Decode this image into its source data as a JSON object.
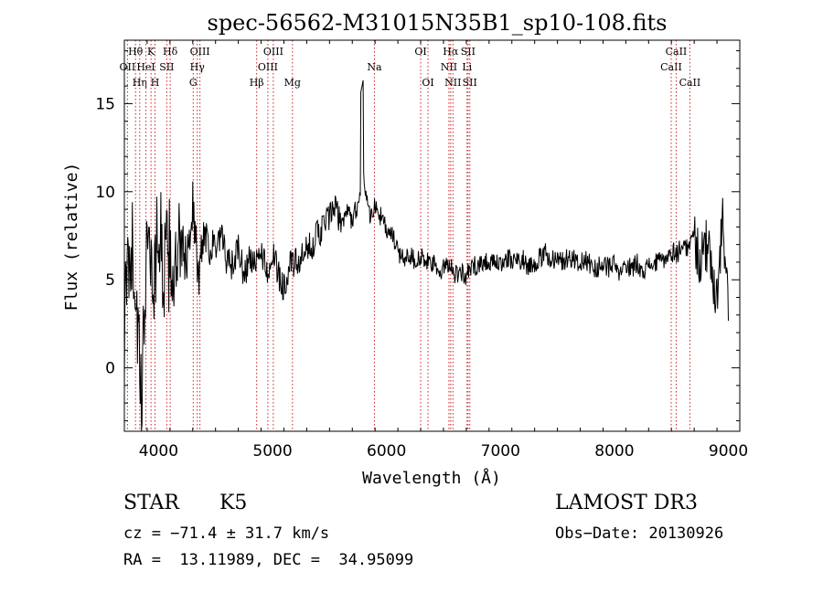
{
  "chart_data": {
    "type": "line",
    "title": "spec-56562-M31015N35B1_sp10-108.fits",
    "xlabel": "Wavelength (Å)",
    "ylabel": "Flux (relative)",
    "xlim": [
      3700,
      9100
    ],
    "ylim": [
      -3.6,
      18.6
    ],
    "x_ticks": [
      4000,
      5000,
      6000,
      7000,
      8000,
      9000
    ],
    "x_tick_labels": [
      "4000",
      "5000",
      "6000",
      "7000",
      "8000",
      "9000"
    ],
    "y_ticks": [
      0,
      5,
      10,
      15
    ],
    "y_tick_labels": [
      "0",
      "5",
      "10",
      "15"
    ],
    "series": [
      {
        "name": "flux",
        "color": "#000000",
        "x": [
          3700,
          3750,
          3800,
          3850,
          3900,
          3950,
          4000,
          4050,
          4100,
          4150,
          4200,
          4250,
          4300,
          4350,
          4400,
          4450,
          4500,
          4550,
          4600,
          4650,
          4700,
          4750,
          4800,
          4850,
          4900,
          4950,
          5000,
          5050,
          5100,
          5150,
          5200,
          5250,
          5300,
          5350,
          5400,
          5450,
          5500,
          5550,
          5600,
          5650,
          5700,
          5750,
          5800,
          5850,
          5900,
          5950,
          6000,
          6050,
          6100,
          6150,
          6200,
          6250,
          6300,
          6350,
          6400,
          6450,
          6500,
          6550,
          6600,
          6650,
          6700,
          6750,
          6800,
          6850,
          6900,
          6950,
          7000,
          7050,
          7100,
          7150,
          7200,
          7250,
          7300,
          7350,
          7400,
          7450,
          7500,
          7550,
          7600,
          7650,
          7700,
          7750,
          7800,
          7850,
          7900,
          7950,
          8000,
          8050,
          8100,
          8150,
          8200,
          8250,
          8300,
          8350,
          8400,
          8450,
          8500,
          8550,
          8600,
          8650,
          8700,
          8750,
          8800,
          8850,
          8900,
          8950,
          9000
        ],
        "y": [
          2.0,
          7.5,
          5.0,
          -3.0,
          9.0,
          4.5,
          8.0,
          5.5,
          6.5,
          5.0,
          7.0,
          6.0,
          9.5,
          5.0,
          8.0,
          7.0,
          6.5,
          7.5,
          6.0,
          5.8,
          6.8,
          5.2,
          6.3,
          5.6,
          6.8,
          5.4,
          6.5,
          5.3,
          4.6,
          5.8,
          5.9,
          6.1,
          6.6,
          7.1,
          7.6,
          8.1,
          8.6,
          9.0,
          8.2,
          8.9,
          8.4,
          9.3,
          11.0,
          8.7,
          9.1,
          8.6,
          7.8,
          7.5,
          6.6,
          6.2,
          6.5,
          6.1,
          6.3,
          5.9,
          6.0,
          5.4,
          5.6,
          6.1,
          5.3,
          5.5,
          5.2,
          5.7,
          5.9,
          6.0,
          6.1,
          5.8,
          5.9,
          6.3,
          6.0,
          6.1,
          6.2,
          5.7,
          6.0,
          6.2,
          6.5,
          6.1,
          6.4,
          6.0,
          6.3,
          6.2,
          5.9,
          6.1,
          5.8,
          5.6,
          6.0,
          5.7,
          5.8,
          5.2,
          5.9,
          5.6,
          6.0,
          5.5,
          5.8,
          5.9,
          6.0,
          6.2,
          6.6,
          6.5,
          7.0,
          6.8,
          7.5,
          6.2,
          7.0,
          5.8,
          4.0,
          8.5,
          3.0
        ]
      }
    ],
    "lines": [
      {
        "wave": 3727,
        "labels": [
          "OII"
        ],
        "rows": [
          2
        ]
      },
      {
        "wave": 3798,
        "labels": [
          "Hθ"
        ],
        "rows": [
          1
        ]
      },
      {
        "wave": 3835,
        "labels": [
          "Hη"
        ],
        "rows": [
          3
        ]
      },
      {
        "wave": 3889,
        "labels": [
          "HeI"
        ],
        "rows": [
          2
        ]
      },
      {
        "wave": 3934,
        "labels": [
          "K"
        ],
        "rows": [
          1
        ]
      },
      {
        "wave": 3969,
        "labels": [
          "H"
        ],
        "rows": [
          3
        ]
      },
      {
        "wave": 4072,
        "labels": [
          "SII"
        ],
        "rows": [
          2
        ]
      },
      {
        "wave": 4102,
        "labels": [
          "Hδ"
        ],
        "rows": [
          1
        ]
      },
      {
        "wave": 4304,
        "labels": [
          "G"
        ],
        "rows": [
          3
        ]
      },
      {
        "wave": 4340,
        "labels": [
          "Hγ"
        ],
        "rows": [
          2
        ]
      },
      {
        "wave": 4363,
        "labels": [
          "OIII"
        ],
        "rows": [
          1
        ]
      },
      {
        "wave": 4861,
        "labels": [
          "Hβ"
        ],
        "rows": [
          3
        ]
      },
      {
        "wave": 4959,
        "labels": [
          "OIII"
        ],
        "rows": [
          2
        ]
      },
      {
        "wave": 5007,
        "labels": [
          "OIII"
        ],
        "rows": [
          1
        ]
      },
      {
        "wave": 5175,
        "labels": [
          "Mg"
        ],
        "rows": [
          3
        ]
      },
      {
        "wave": 5894,
        "labels": [
          "Na"
        ],
        "rows": [
          2
        ]
      },
      {
        "wave": 6300,
        "labels": [
          "OI"
        ],
        "rows": [
          1
        ]
      },
      {
        "wave": 6364,
        "labels": [
          "OI"
        ],
        "rows": [
          3
        ]
      },
      {
        "wave": 6548,
        "labels": [
          "NII"
        ],
        "rows": [
          2
        ]
      },
      {
        "wave": 6563,
        "labels": [
          "Hα"
        ],
        "rows": [
          1
        ]
      },
      {
        "wave": 6583,
        "labels": [
          "NII"
        ],
        "rows": [
          3
        ]
      },
      {
        "wave": 6707,
        "labels": [
          "Li"
        ],
        "rows": [
          2
        ]
      },
      {
        "wave": 6716,
        "labels": [
          "SII"
        ],
        "rows": [
          1
        ]
      },
      {
        "wave": 6731,
        "labels": [
          "SII"
        ],
        "rows": [
          3
        ]
      },
      {
        "wave": 8498,
        "labels": [
          "CaII"
        ],
        "rows": [
          2
        ]
      },
      {
        "wave": 8542,
        "labels": [
          "CaII"
        ],
        "rows": [
          1
        ]
      },
      {
        "wave": 8662,
        "labels": [
          "CaII"
        ],
        "rows": [
          3
        ]
      }
    ]
  },
  "info": {
    "class": "STAR",
    "subclass": "K5",
    "survey": "LAMOST DR3",
    "cz": "cz = −71.4 ± 31.7 km/s",
    "obs_date": "Obs−Date: 20130926",
    "coords": "RA =  13.11989, DEC =  34.95099"
  }
}
